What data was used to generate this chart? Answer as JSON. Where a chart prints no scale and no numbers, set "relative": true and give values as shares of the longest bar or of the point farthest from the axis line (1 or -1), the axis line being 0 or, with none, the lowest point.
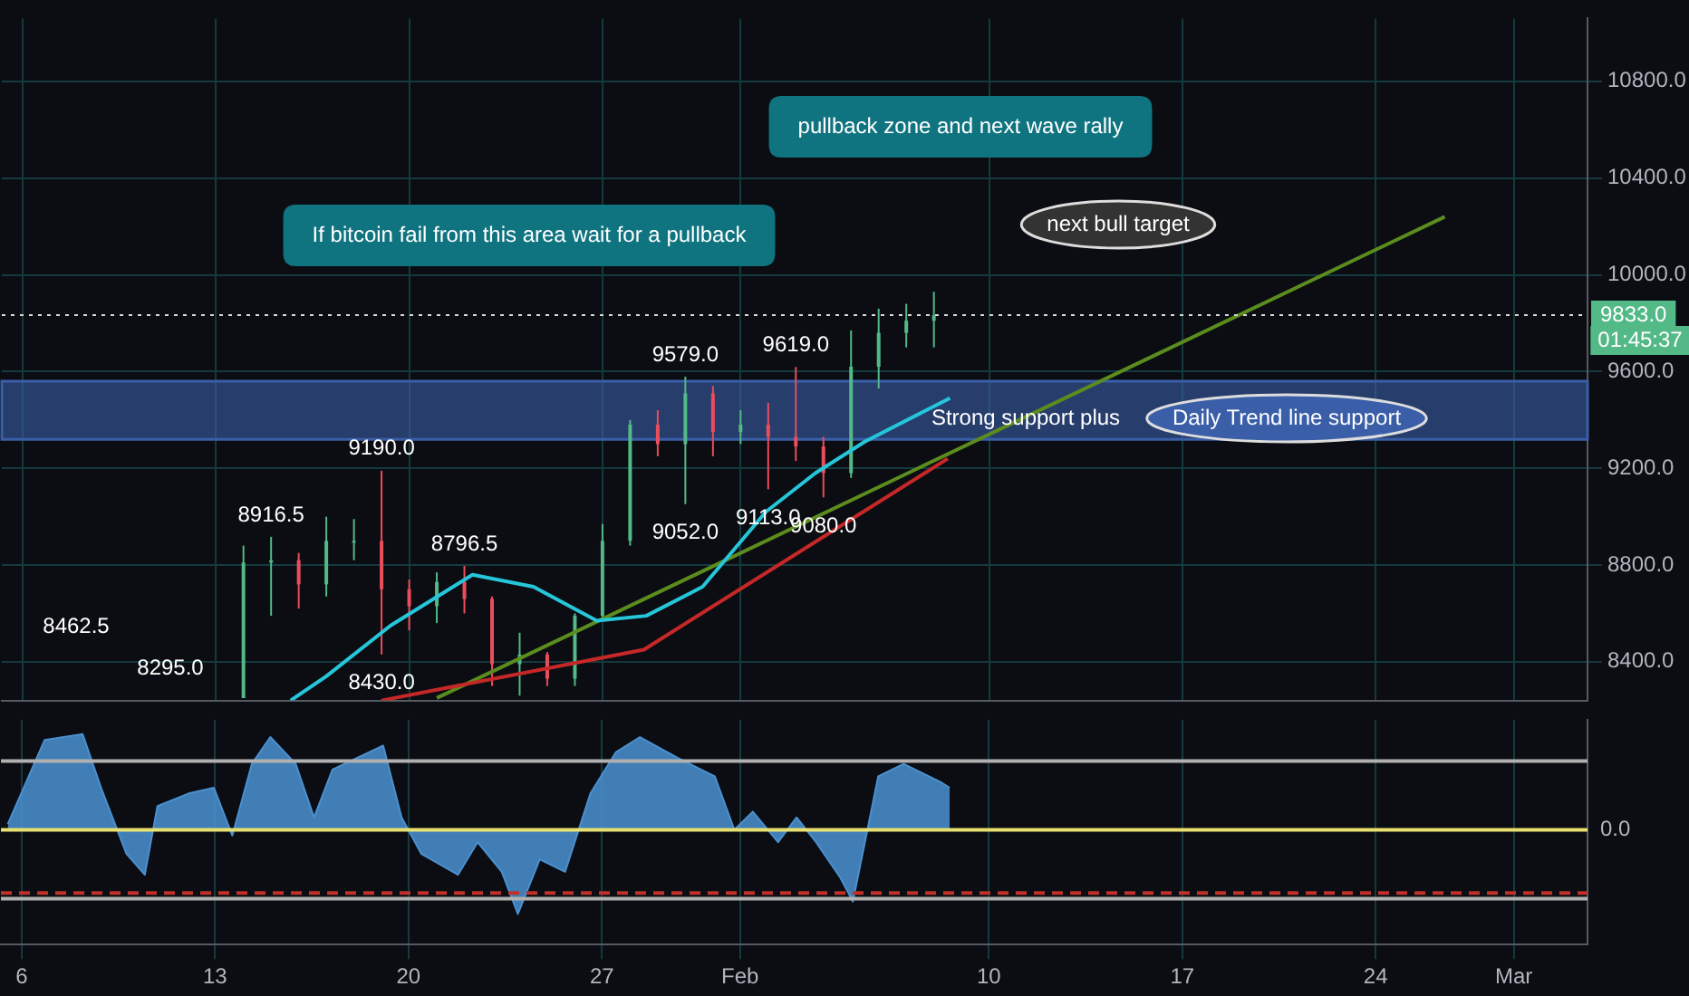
{
  "chart_data": [
    {
      "type": "candlestick",
      "x": [
        "--01-14",
        "--01-15",
        "--01-16",
        "--01-17",
        "--01-18",
        "--01-19",
        "--01-20",
        "--01-21",
        "--01-22",
        "--01-23",
        "--01-24",
        "--01-25",
        "--01-26",
        "--01-27",
        "--01-28",
        "--01-29",
        "--01-30",
        "--01-31",
        "--02-01",
        "--02-02",
        "--02-03",
        "--02-04",
        "--02-05",
        "--02-06",
        "--02-07",
        "--02-08"
      ],
      "ohlc": [
        [
          8250,
          8880,
          8250,
          8810
        ],
        [
          8810,
          8916.5,
          8590,
          8820
        ],
        [
          8820,
          8850,
          8620,
          8720
        ],
        [
          8720,
          9000,
          8670,
          8900
        ],
        [
          8900,
          8990,
          8820,
          8900
        ],
        [
          8900,
          9190,
          8430,
          8700
        ],
        [
          8700,
          8740,
          8530,
          8630
        ],
        [
          8630,
          8770,
          8560,
          8730
        ],
        [
          8730,
          8796.5,
          8600,
          8660
        ],
        [
          8660,
          8670,
          8300,
          8390
        ],
        [
          8390,
          8520,
          8260,
          8430
        ],
        [
          8430,
          8440,
          8300,
          8330
        ],
        [
          8330,
          8600,
          8300,
          8590
        ],
        [
          8590,
          8970,
          8570,
          8900
        ],
        [
          8900,
          9400,
          8880,
          9380
        ],
        [
          9380,
          9440,
          9250,
          9300
        ],
        [
          9300,
          9579,
          9052,
          9510
        ],
        [
          9510,
          9540,
          9250,
          9350
        ],
        [
          9350,
          9440,
          9300,
          9380
        ],
        [
          9380,
          9470,
          9113,
          9330
        ],
        [
          9330,
          9619,
          9230,
          9290
        ],
        [
          9290,
          9330,
          9080,
          9180
        ],
        [
          9180,
          9770,
          9160,
          9620
        ],
        [
          9620,
          9860,
          9530,
          9760
        ],
        [
          9760,
          9880,
          9700,
          9810
        ],
        [
          9810,
          9930,
          9700,
          9833
        ]
      ],
      "series": [
        {
          "type": "line",
          "color": "#26c6da",
          "x": [
            "--01-15T17:00",
            "--01-17",
            "--01-19T08:00",
            "--01-22T07:00",
            "--01-24T12:00",
            "--01-26T19:00",
            "--01-28T14:00",
            "--01-30T15:00",
            "--02-01T22:00",
            "--02-03T17:00",
            "--02-05T12:00",
            "--02-08T14:00"
          ],
          "values": [
            8240,
            8340,
            8550,
            8760,
            8710,
            8570,
            8590,
            8710,
            9020,
            9180,
            9310,
            9490
          ]
        },
        {
          "type": "line",
          "color": "#c62828",
          "x": [
            "--01-19",
            "--01-28T12:00",
            "--02-08T12:00"
          ],
          "values": [
            8240,
            8450,
            9240
          ]
        },
        {
          "type": "line",
          "color": "#5b8c1e",
          "x": [
            "--01-21",
            "--02-26T12:00"
          ],
          "values": [
            8250,
            10240
          ]
        }
      ],
      "xlim": [
        "--01-05T06:00",
        "--03-03T16:00"
      ],
      "xticks": [
        {
          "value": "--01-06",
          "label": null
        },
        {
          "value": "--01-13",
          "label": null
        },
        {
          "value": "--01-20",
          "label": null
        },
        {
          "value": "--01-27",
          "label": null
        },
        {
          "value": "--02-01",
          "label": null
        },
        {
          "value": "--02-10",
          "label": null
        },
        {
          "value": "--02-17",
          "label": null
        },
        {
          "value": "--02-24",
          "label": null
        },
        {
          "value": "--03-01",
          "label": null
        }
      ],
      "ylim": [
        8240,
        11060
      ],
      "yticks": [
        {
          "value": 8400,
          "label": "8400.0"
        },
        {
          "value": 8800,
          "label": "8800.0"
        },
        {
          "value": 9200,
          "label": "9200.0"
        },
        {
          "value": 9600,
          "label": "9600.0"
        },
        {
          "value": 10000,
          "label": "10000.0"
        },
        {
          "value": 10400,
          "label": "10400.0"
        },
        {
          "value": 10800,
          "label": "10800.0"
        }
      ],
      "grid": true,
      "tick_labels": "y",
      "ref_lines": [
        {
          "axis": "y",
          "value": 9833,
          "label": "9833.0",
          "color": "#d8d8d8",
          "line_style": "dotted"
        }
      ],
      "bands": [
        {
          "axis": "y",
          "from": 9320,
          "to": 9560,
          "color": "#3a5fa8"
        }
      ],
      "annotations": [
        "If bitcoin fail from this area wait for a pullback",
        "pullback zone and next wave rally",
        "next bull target",
        "Strong support plus",
        "Daily Trend line support",
        "01:45:37",
        "8462.5",
        "8295.0",
        {
          "text": "8916.5",
          "x": "--01-15",
          "y": 8916.5
        },
        {
          "text": "9190.0",
          "x": "--01-19",
          "y": 9190
        },
        {
          "text": "8796.5",
          "x": "--01-22",
          "y": 8796.5
        },
        {
          "text": "8430.0",
          "x": "--01-19",
          "y": 8430
        },
        {
          "text": "9579.0",
          "x": "--01-30",
          "y": 9579
        },
        {
          "text": "9052.0",
          "x": "--01-30",
          "y": 9052
        },
        {
          "text": "9619.0",
          "x": "--02-03",
          "y": 9619
        },
        {
          "text": "9113.0",
          "x": "--02-02",
          "y": 9113
        },
        {
          "text": "9080.0",
          "x": "--02-04",
          "y": 9080
        }
      ]
    },
    {
      "type": "area",
      "relative": true,
      "color": "#4a90d0",
      "x": [
        "--01-05T12:00",
        "--01-06T20:00",
        "--01-08T05:00",
        "--01-08T21:00",
        "--01-09T19:00",
        "--01-10T11:00",
        "--01-10T22:00",
        "--01-12T01:00",
        "--01-12T23:00",
        "--01-13T15:00",
        "--01-14T08:00",
        "--01-15",
        "--01-15T22:00",
        "--01-16T14:00",
        "--01-17T06:00",
        "--01-19T02:00",
        "--01-19T18:00",
        "--01-20T11:00",
        "--01-21T19:00",
        "--01-22T12:00",
        "--01-23T09:00",
        "--01-23T23:00",
        "--01-24T18:00",
        "--01-25T16:00",
        "--01-26T14:00",
        "--01-27T12:00",
        "--01-28T09:00",
        "--01-29T18:00",
        "--01-31T02:00",
        "--01-31T19:00",
        "--02-01T11:00",
        "--02-02T09:00",
        "--02-03T01:00",
        "--02-03T18:00",
        "--02-04T15:00",
        "--02-05T02:00",
        "--02-06",
        "--02-06T22:00",
        "--02-08T06:00",
        "--02-08T14:00"
      ],
      "values": [
        0.06,
        0.94,
        1,
        0.44,
        -0.25,
        -0.47,
        0.25,
        0.38,
        0.44,
        -0.06,
        0.69,
        0.97,
        0.69,
        0.13,
        0.63,
        0.88,
        0.13,
        -0.25,
        -0.47,
        -0.13,
        -0.44,
        -0.88,
        -0.31,
        -0.44,
        0.38,
        0.81,
        0.97,
        0.75,
        0.56,
        0,
        0.19,
        -0.13,
        0.13,
        -0.13,
        -0.5,
        -0.75,
        0.56,
        0.69,
        0.5,
        0.44
      ],
      "xlim": [
        "--01-05T06:00",
        "--03-03T16:00"
      ],
      "xticks": [
        {
          "value": "--01-06",
          "label": "6"
        },
        {
          "value": "--01-13",
          "label": "13"
        },
        {
          "value": "--01-20",
          "label": "20"
        },
        {
          "value": "--01-27",
          "label": "27"
        },
        {
          "value": "--02-01",
          "label": "Feb"
        },
        {
          "value": "--02-10",
          "label": "10"
        },
        {
          "value": "--02-17",
          "label": "17"
        },
        {
          "value": "--02-24",
          "label": "24"
        },
        {
          "value": "--03-01",
          "label": "Mar"
        }
      ],
      "grid": "x",
      "tick_labels": "x",
      "ref_lines": [
        {
          "axis": "y",
          "value": 0,
          "label": "0.0",
          "color": "#e8e070"
        },
        {
          "axis": "y",
          "value": 0.72,
          "color": "#b0b0b0"
        },
        {
          "axis": "y",
          "value": -0.72,
          "color": "#b0b0b0"
        },
        {
          "axis": "y",
          "value": -0.66,
          "color": "#c0302a",
          "line_style": "dashed"
        }
      ]
    }
  ]
}
